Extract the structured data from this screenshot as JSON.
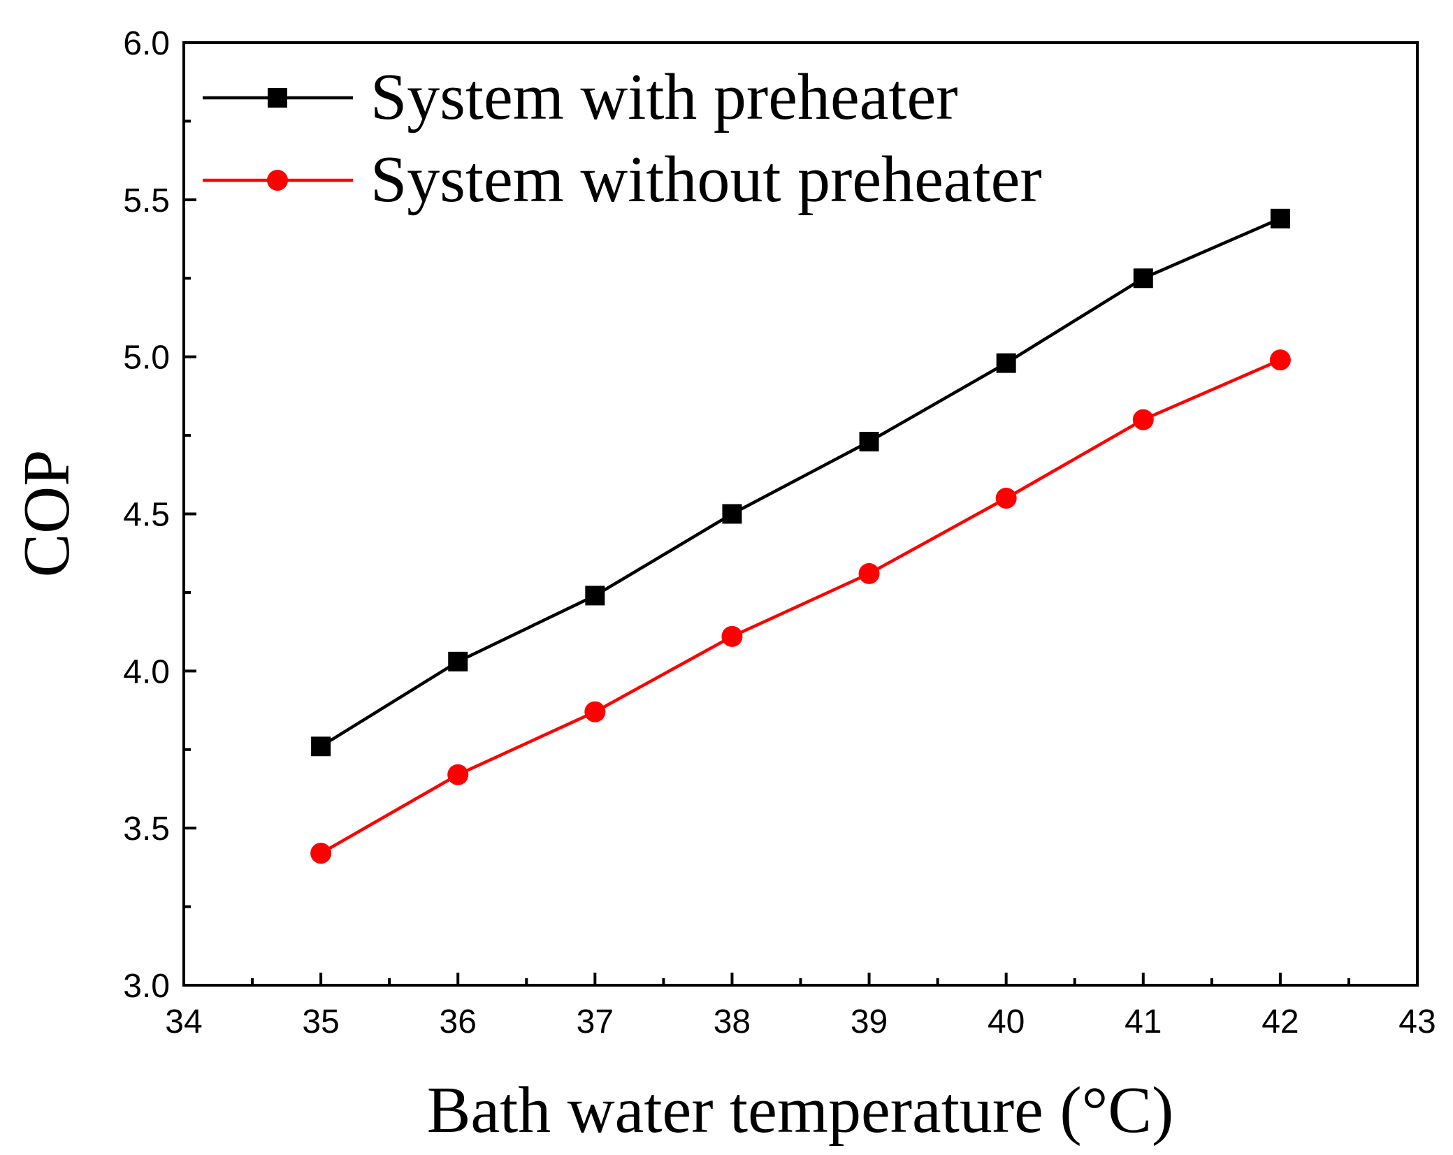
{
  "chart_data": {
    "type": "line",
    "title": "",
    "xlabel": "Bath water temperature (°C)",
    "ylabel": "COP",
    "xlim": [
      34,
      43
    ],
    "ylim": [
      3.0,
      6.0
    ],
    "x_ticks": [
      34,
      35,
      36,
      37,
      38,
      39,
      40,
      41,
      42,
      43
    ],
    "x_tick_labels": [
      "34",
      "35",
      "36",
      "37",
      "38",
      "39",
      "40",
      "41",
      "42",
      "43"
    ],
    "y_ticks": [
      3.0,
      3.5,
      4.0,
      4.5,
      5.0,
      5.5,
      6.0
    ],
    "y_tick_labels": [
      "3.0",
      "3.5",
      "4.0",
      "4.5",
      "5.0",
      "5.5",
      "6.0"
    ],
    "grid": false,
    "legend_position": "top-left",
    "x": [
      35,
      36,
      37,
      38,
      39,
      40,
      41,
      42
    ],
    "series": [
      {
        "name": "System with preheater",
        "color": "#000000",
        "marker": "square",
        "values": [
          3.76,
          4.03,
          4.24,
          4.5,
          4.73,
          4.98,
          5.25,
          5.44
        ]
      },
      {
        "name": "System without preheater",
        "color": "#ff0000",
        "marker": "circle",
        "values": [
          3.42,
          3.67,
          3.87,
          4.11,
          4.31,
          4.55,
          4.8,
          4.99
        ]
      }
    ]
  }
}
